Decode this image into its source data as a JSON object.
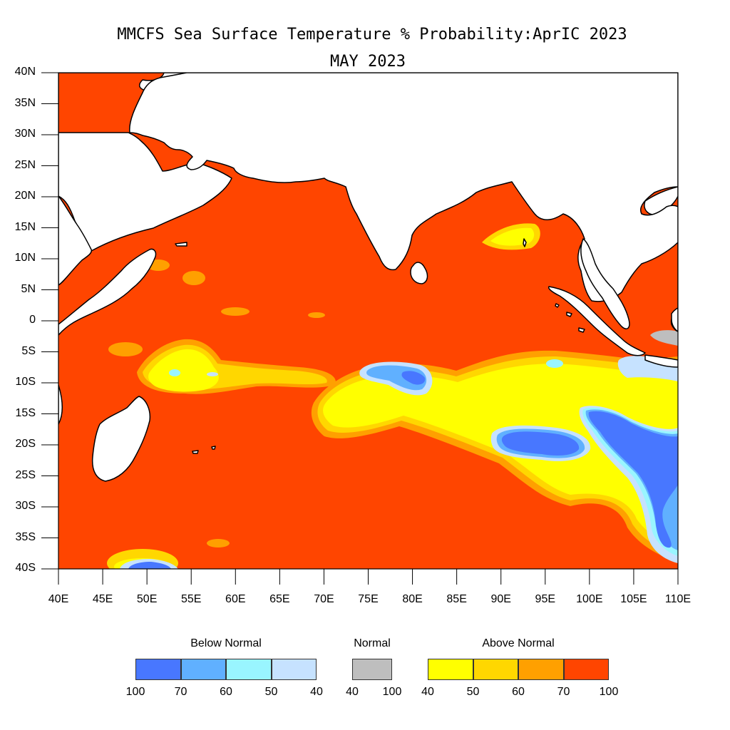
{
  "title": {
    "line1": "MMCFS Sea Surface Temperature % Probability:AprIC 2023",
    "line2": "MAY 2023"
  },
  "map": {
    "lon_range": [
      40,
      110
    ],
    "lat_range": [
      -40,
      40
    ],
    "y_ticks": [
      "40N",
      "35N",
      "30N",
      "25N",
      "20N",
      "15N",
      "10N",
      "5N",
      "0",
      "5S",
      "10S",
      "15S",
      "20S",
      "25S",
      "30S",
      "35S",
      "40S"
    ],
    "x_ticks": [
      "40E",
      "45E",
      "50E",
      "55E",
      "60E",
      "65E",
      "70E",
      "75E",
      "80E",
      "85E",
      "90E",
      "95E",
      "100E",
      "105E",
      "110E"
    ],
    "dominant_category": "Above Normal 70-100",
    "colors": {
      "above_70_100": "#ff4500",
      "above_60_70": "#ffa000",
      "above_50_60": "#ffd700",
      "above_40_50": "#ffff00",
      "normal": "#bebebe",
      "below_40_50": "#c6e2ff",
      "below_50_60": "#99f5ff",
      "below_60_70": "#60b0ff",
      "below_70_100": "#4877ff",
      "land": "#ffffff",
      "coast": "#000000"
    }
  },
  "legend": {
    "below": {
      "title": "Below Normal",
      "colors": [
        "#4877ff",
        "#60b0ff",
        "#99f5ff",
        "#c6e2ff"
      ],
      "ticks": [
        "100",
        "70",
        "60",
        "50",
        "40"
      ]
    },
    "normal": {
      "title": "Normal",
      "colors": [
        "#bebebe"
      ],
      "ticks": [
        "40",
        "100"
      ]
    },
    "above": {
      "title": "Above Normal",
      "colors": [
        "#ffff00",
        "#ffd700",
        "#ffa000",
        "#ff4500"
      ],
      "ticks": [
        "40",
        "50",
        "60",
        "70",
        "100"
      ]
    }
  }
}
